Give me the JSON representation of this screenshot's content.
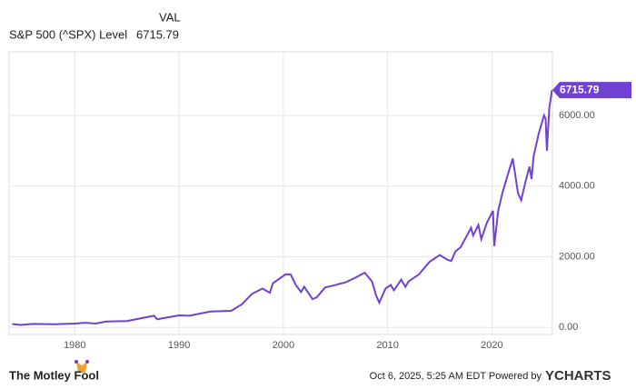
{
  "header": {
    "column": "VAL"
  },
  "chart_data": {
    "type": "line",
    "x": [
      1974.0,
      1974.8,
      1976,
      1978,
      1980,
      1981,
      1982,
      1983,
      1985,
      1987.6,
      1987.9,
      1990,
      1991,
      1993,
      1995,
      1996,
      1997,
      1998,
      1998.7,
      1999,
      2000.2,
      2000.7,
      2001.2,
      2001.7,
      2002,
      2002.8,
      2003.2,
      2004,
      2005,
      2006,
      2007,
      2007.8,
      2008.5,
      2008.9,
      2009.2,
      2009.8,
      2010.3,
      2010.6,
      2011.3,
      2011.7,
      2012,
      2013,
      2014,
      2015,
      2015.7,
      2016.1,
      2016.5,
      2017,
      2018,
      2018.2,
      2018.7,
      2018.98,
      2019.5,
      2020.1,
      2020.22,
      2020.6,
      2021,
      2021.5,
      2022,
      2022.5,
      2022.8,
      2023.2,
      2023.6,
      2023.8,
      2024,
      2024.5,
      2025,
      2025.15,
      2025.27,
      2025.5,
      2025.76
    ],
    "series": [
      {
        "name": "S&P 500 (^SPX) Level",
        "color": "#6f42d4",
        "values": [
          97,
          70,
          100,
          90,
          110,
          130,
          110,
          165,
          180,
          330,
          230,
          340,
          330,
          450,
          470,
          650,
          950,
          1100,
          980,
          1250,
          1500,
          1500,
          1200,
          1000,
          1150,
          800,
          850,
          1130,
          1200,
          1280,
          1420,
          1550,
          1300,
          900,
          700,
          1100,
          1200,
          1050,
          1350,
          1150,
          1300,
          1500,
          1850,
          2050,
          1920,
          1880,
          2150,
          2270,
          2820,
          2600,
          2900,
          2500,
          2950,
          3300,
          2300,
          3300,
          3800,
          4300,
          4780,
          3800,
          3600,
          4100,
          4550,
          4200,
          4850,
          5500,
          6000,
          5900,
          5000,
          6200,
          6715.79
        ]
      }
    ],
    "xlim": [
      1973.7,
      2025.8
    ],
    "ylim": [
      -200,
      7800
    ],
    "xticks": [
      1980,
      1990,
      2000,
      2010,
      2020
    ],
    "yticks": [
      {
        "value": 0,
        "label": "0.00"
      },
      {
        "value": 2000,
        "label": "2000.00"
      },
      {
        "value": 4000,
        "label": "4000.00"
      },
      {
        "value": 6000,
        "label": "6000.00"
      }
    ],
    "grid": true
  },
  "footer": {
    "brand": "The Motley Fool",
    "timestamp": "Oct 6, 2025, 5:25 AM EDT Powered by",
    "source": "YCHARTS"
  }
}
